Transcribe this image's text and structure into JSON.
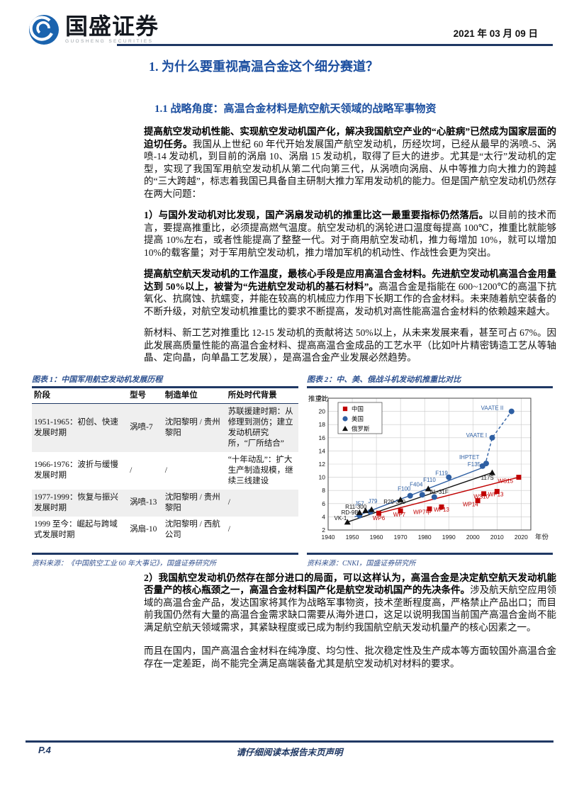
{
  "header": {
    "brand": "国盛证券",
    "brand_sub": "GUOSHENG SECURITIES",
    "date": "2021 年 03 月 09 日"
  },
  "section": {
    "h1": "1. 为什么要重视高温合金这个细分赛道？",
    "h2": "1.1 战略角度：高温合金材料是航空航天领域的战略军事物资"
  },
  "paragraphs": {
    "p1": {
      "bold": "提高航空发动机性能、实现航空发动机国产化，解决我国航空产业的“心脏病”已然成为国家层面的迫切任务。",
      "rest": "我国从上世纪 60 年代开始发展国产航空发动机，历经坎坷，已经从最早的涡喷-5、涡喷-14 发动机，到目前的涡扇 10、涡扇 15 发动机，取得了巨大的进步。尤其是“太行”发动机的定型，实现了我国军用航空发动机从第二代向第三代，从涡喷向涡扇、从中等推力向大推力的跨越的“三大跨越”，标志着我国已具备自主研制大推力军用发动机的能力。但是国产航空发动机仍然存在两大问题："
    },
    "p2": {
      "bold": "1）与国外发动机对比发现，国产涡扇发动机的推重比这一最重要指标仍然落后。",
      "rest": "以目前的技术而言，要提高推重比，必须提高燃气温度。航空发动机的涡轮进口温度每提高 100℃，推重比就能够提高 10%左右，或者性能提高了整整一代。对于商用航空发动机，推力每增加 10%，就可以增加 10%的载客量；对于军用航空发动机，推力增加军机的机动性、作战性会更为突出。"
    },
    "p3": {
      "bold": "提高航空航天发动机的工作温度，最核心手段是应用高温合金材料。先进航空发动机高温合金用量达到 50%以上，被誉为“先进航空发动机的基石材料”。",
      "rest": "高温合金是指能在 600~1200℃的高温下抗氧化、抗腐蚀、抗蠕变，并能在较高的机械应力作用下长期工作的合金材料。未来随着航空装备的不断升级，对航空发动机推重比的要求不断提高，发动机对高性能高温合金材料的依赖越来越大。"
    },
    "p4": {
      "bold": "",
      "rest": "新材料、新工艺对推重比 12-15 发动机的贡献将达 50%以上，从未来发展来看，甚至可占 67%。因此发展高质量性能的高温合金材料、提高高温合金成品的工艺水平（比如叶片精密铸造工艺从等轴晶、定向晶，向单晶工艺发展），是高温合金产业发展必然趋势。"
    },
    "p5": {
      "bold": "2）我国航空发动机仍然存在部分进口的局面，可以这样认为，高温合金是决定航空航天发动机能否量产的核心瓶颈之一，高温合金材料国产化是航空发动机国产的先决条件。",
      "rest": "涉及航天航空应用领域的高温合金产品，发达国家将其作为战略军事物资，技术垄断程度高，严格禁止产品出口；而目前我国仍然有大量的高温合金需求缺口需要从海外进口，这足以说明我国当前国产高温合金尚不能满足航空航天领域需求，其紧缺程度或已成为制约我国航空航天发动机量产的核心因素之一。"
    },
    "p6": {
      "bold": "",
      "rest": "而且在国内，国产高温合金材料在纯净度、均匀性、批次稳定性及生产成本等方面较国外高温合金存在一定差距，尚不能完全满足高端装备尤其是航空发动机对材料的要求。"
    }
  },
  "figure1": {
    "caption": "图表 1：中国军用航空发动机发展历程",
    "headers": [
      "阶段",
      "型号",
      "制造单位",
      "所处时代背景"
    ],
    "rows": [
      {
        "stage": "1951-1965：初创、快速发展时期",
        "model": "涡喷-7",
        "maker": "沈阳黎明 / 贵州黎阳",
        "background": "苏联援建时期：从修理到测仿；建立发动机研究所，“厂所结合”"
      },
      {
        "stage": "1966-1976：波折与缓慢发展时期",
        "model": "/",
        "maker": "/",
        "background": "“十年动乱”：扩大生产制造规模，继续三线建设"
      },
      {
        "stage": "1977-1999：恢复与振兴发展时期",
        "model": "涡喷-13",
        "maker": "沈阳黎明 / 贵州黎阳",
        "background": "/"
      },
      {
        "stage": "1999 至今：崛起与跨域式发展时期",
        "model": "涡扇-10",
        "maker": "沈阳黎明 / 西航公司",
        "background": "/"
      }
    ],
    "source": "资料来源：《中国航空工业 60 年大事记》，国盛证券研究所"
  },
  "figure2": {
    "caption": "图表 2：中、美、俄战斗机发动机推重比对比",
    "source": "资料来源：CNKI，国盛证券研究所"
  },
  "chart_data": {
    "type": "scatter",
    "title": "中、美、俄战斗机发动机推重比对比",
    "ylabel": "推重比",
    "xlabel": "年份",
    "xlim": [
      1940,
      2024
    ],
    "ylim": [
      2,
      22
    ],
    "xticks": [
      1940,
      1950,
      1960,
      1970,
      1980,
      1990,
      2000,
      2010,
      2020
    ],
    "yticks": [
      2,
      4,
      6,
      8,
      10,
      12,
      14,
      16,
      18,
      20,
      22
    ],
    "grid": true,
    "legend_position": "upper-left",
    "series": [
      {
        "name": "中国",
        "marker": "square",
        "color": "#c00000",
        "points": [
          {
            "x": 1961,
            "y": 4.55,
            "label": "WP6",
            "label_at": [
              1961,
              3.5
            ]
          },
          {
            "x": 1970,
            "y": 4.9,
            "label": "WP7",
            "label_at": [
              1969.5,
              4.05
            ]
          },
          {
            "x": 1982,
            "y": 5.2,
            "label": "WP7甲",
            "label_at": [
              1979,
              4.4
            ]
          },
          {
            "x": 1987,
            "y": 5.5,
            "label": "WP13",
            "label_at": [
              1987,
              4.8
            ]
          },
          {
            "x": 2002,
            "y": 6.45,
            "label": "WP14",
            "label_at": [
              1999,
              5.6
            ]
          },
          {
            "x": 2004.5,
            "y": 7.5,
            "label": "WS10",
            "label_at": [
              2003.5,
              6.8
            ]
          },
          {
            "x": 2010,
            "y": 7.85,
            "label": "WP13",
            "label_at": [
              2009.5,
              7.1
            ]
          },
          {
            "x": 2019,
            "y": 10.0,
            "label": "WS15",
            "label_at": [
              2013.5,
              9.15
            ]
          }
        ],
        "trends": [
          {
            "dashed": false,
            "points": [
              [
                1961,
                4.55
              ],
              [
                2019,
                10.0
              ]
            ]
          }
        ]
      },
      {
        "name": "美国",
        "marker": "circle",
        "color": "#2e5fa3",
        "points": [
          {
            "x": 1953,
            "y": 4.2,
            "label": "J57",
            "label_at": [
              1953,
              5.7
            ]
          },
          {
            "x": 1957.5,
            "y": 4.75,
            "label": "J79",
            "label_at": [
              1958.5,
              6.1
            ]
          },
          {
            "x": 1974,
            "y": 7.2,
            "label": "F100",
            "label_at": [
              1971.5,
              7.95
            ]
          },
          {
            "x": 1979,
            "y": 7.35,
            "label": "F404",
            "label_at": [
              1976.5,
              8.6
            ]
          },
          {
            "x": 1984,
            "y": 7.0,
            "label": "F110",
            "label_at": [
              1982,
              9.3
            ]
          },
          {
            "x": 1990,
            "y": 10.0,
            "label": "F119",
            "label_at": [
              1987,
              10.35
            ]
          },
          {
            "x": 2004,
            "y": 11.7,
            "label": "F135",
            "label_at": [
              2000.5,
              11.7
            ]
          },
          {
            "x": 2005.5,
            "y": 12.1,
            "label": "IHPTET",
            "label_at": [
              1998.5,
              12.75
            ]
          },
          {
            "x": 2008,
            "y": 16.0,
            "label": "VAATE I",
            "label_at": [
              2001.5,
              16.1
            ]
          },
          {
            "x": 2016,
            "y": 20.0,
            "label": "VAATE II",
            "label_at": [
              2008,
              20.2
            ]
          }
        ],
        "trends": [
          {
            "dashed": false,
            "points": [
              [
                1951,
                4.0
              ],
              [
                2005,
                11.6
              ]
            ]
          },
          {
            "dashed": true,
            "points": [
              [
                2005,
                11.8
              ],
              [
                2008,
                16.0
              ],
              [
                2016,
                20.0
              ]
            ]
          }
        ]
      },
      {
        "name": "俄罗斯",
        "marker": "triangle",
        "color": "#111111",
        "points": [
          {
            "x": 1948,
            "y": 3.2,
            "label": "VK-1",
            "label_at": [
              1942.5,
              3.5
            ],
            "anchor": "start"
          },
          {
            "x": 1953,
            "y": 4.65,
            "label": "RD-9B",
            "label_at": [
              1949,
              4.35
            ]
          },
          {
            "x": 1955.5,
            "y": 4.95,
            "label": "R11-300",
            "label_at": [
              1951.5,
              5.25
            ]
          },
          {
            "x": 1958,
            "y": 5.1,
            "label": ""
          },
          {
            "x": 1970,
            "y": 6.6,
            "label": "R29-300",
            "label_at": [
              1967.5,
              6.0
            ]
          },
          {
            "x": 1981.5,
            "y": 8.25,
            "label": "AL-31F",
            "label_at": [
              1986,
              7.5
            ]
          },
          {
            "x": 2008,
            "y": 10.7,
            "label": "117S",
            "label_at": [
              2006,
              9.65
            ]
          }
        ],
        "trends": [
          {
            "dashed": false,
            "points": [
              [
                1948,
                3.2
              ],
              [
                2008,
                10.7
              ]
            ]
          }
        ]
      }
    ]
  },
  "footer": {
    "page": "P.4",
    "disclaimer": "请仔细阅读本报告末页声明"
  },
  "colors": {
    "accent_navy": "#1f3864",
    "heading_blue": "#1c4fa0",
    "caption_blue": "#2e5291",
    "china_red": "#c00000",
    "usa_blue": "#2e5fa3",
    "russia_black": "#111111",
    "zebra_gray": "#efefef"
  }
}
